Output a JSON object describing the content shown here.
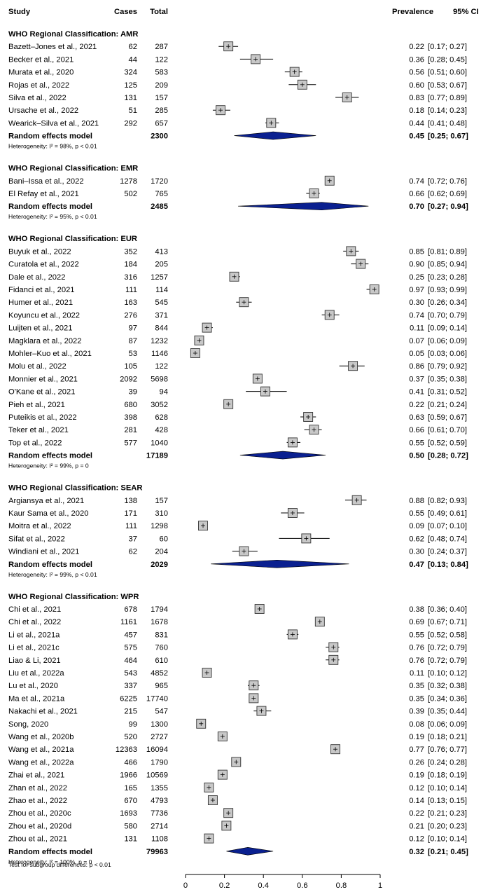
{
  "chart_data": {
    "type": "forest",
    "headers": {
      "study": "Study",
      "cases": "Cases",
      "total": "Total",
      "prevalence": "Prevalence",
      "ci": "95% CI"
    },
    "xlim": [
      0,
      1
    ],
    "x_ticks": [
      "0",
      "0.2",
      "0.4",
      "0.6",
      "0.8",
      "1"
    ],
    "groups": [
      {
        "title": "WHO Regional Classification: AMR",
        "studies": [
          {
            "study": "Bazett–Jones et al., 2021",
            "cases": "62",
            "total": "287",
            "est": 0.22,
            "lo": 0.17,
            "hi": 0.27,
            "prev": "0.22",
            "ci": "[0.17; 0.27]"
          },
          {
            "study": "Becker et al., 2021",
            "cases": "44",
            "total": "122",
            "est": 0.36,
            "lo": 0.28,
            "hi": 0.45,
            "prev": "0.36",
            "ci": "[0.28; 0.45]"
          },
          {
            "study": "Murata et al., 2020",
            "cases": "324",
            "total": "583",
            "est": 0.56,
            "lo": 0.51,
            "hi": 0.6,
            "prev": "0.56",
            "ci": "[0.51; 0.60]"
          },
          {
            "study": "Rojas et al., 2022",
            "cases": "125",
            "total": "209",
            "est": 0.6,
            "lo": 0.53,
            "hi": 0.67,
            "prev": "0.60",
            "ci": "[0.53; 0.67]"
          },
          {
            "study": "Silva et al., 2022",
            "cases": "131",
            "total": "157",
            "est": 0.83,
            "lo": 0.77,
            "hi": 0.89,
            "prev": "0.83",
            "ci": "[0.77; 0.89]"
          },
          {
            "study": "Ursache et al., 2022",
            "cases": "51",
            "total": "285",
            "est": 0.18,
            "lo": 0.14,
            "hi": 0.23,
            "prev": "0.18",
            "ci": "[0.14; 0.23]"
          },
          {
            "study": "Wearick–Silva et al., 2021",
            "cases": "292",
            "total": "657",
            "est": 0.44,
            "lo": 0.41,
            "hi": 0.48,
            "prev": "0.44",
            "ci": "[0.41; 0.48]"
          }
        ],
        "model": {
          "label": "Random effects model",
          "total": "2300",
          "est": 0.45,
          "lo": 0.25,
          "hi": 0.67,
          "prev": "0.45",
          "ci": "[0.25; 0.67]"
        },
        "heterogeneity": "Heterogeneity: I² = 98%, p < 0.01"
      },
      {
        "title": "WHO Regional Classification: EMR",
        "studies": [
          {
            "study": "Bani–Issa et al., 2022",
            "cases": "1278",
            "total": "1720",
            "est": 0.74,
            "lo": 0.72,
            "hi": 0.76,
            "prev": "0.74",
            "ci": "[0.72; 0.76]"
          },
          {
            "study": "El Refay et al., 2021",
            "cases": "502",
            "total": "765",
            "est": 0.66,
            "lo": 0.62,
            "hi": 0.69,
            "prev": "0.66",
            "ci": "[0.62; 0.69]"
          }
        ],
        "model": {
          "label": "Random effects model",
          "total": "2485",
          "est": 0.7,
          "lo": 0.27,
          "hi": 0.94,
          "prev": "0.70",
          "ci": "[0.27; 0.94]"
        },
        "heterogeneity": "Heterogeneity: I² = 95%, p < 0.01"
      },
      {
        "title": "WHO Regional Classification: EUR",
        "studies": [
          {
            "study": "Buyuk et al., 2022",
            "cases": "352",
            "total": "413",
            "est": 0.85,
            "lo": 0.81,
            "hi": 0.89,
            "prev": "0.85",
            "ci": "[0.81; 0.89]"
          },
          {
            "study": "Curatola et al., 2022",
            "cases": "184",
            "total": "205",
            "est": 0.9,
            "lo": 0.85,
            "hi": 0.94,
            "prev": "0.90",
            "ci": "[0.85; 0.94]"
          },
          {
            "study": "Dale et al., 2022",
            "cases": "316",
            "total": "1257",
            "est": 0.25,
            "lo": 0.23,
            "hi": 0.28,
            "prev": "0.25",
            "ci": "[0.23; 0.28]"
          },
          {
            "study": "Fidanci et al., 2021",
            "cases": "111",
            "total": "114",
            "est": 0.97,
            "lo": 0.93,
            "hi": 0.99,
            "prev": "0.97",
            "ci": "[0.93; 0.99]"
          },
          {
            "study": "Humer et al., 2021",
            "cases": "163",
            "total": "545",
            "est": 0.3,
            "lo": 0.26,
            "hi": 0.34,
            "prev": "0.30",
            "ci": "[0.26; 0.34]"
          },
          {
            "study": "Koyuncu et al., 2022",
            "cases": "276",
            "total": "371",
            "est": 0.74,
            "lo": 0.7,
            "hi": 0.79,
            "prev": "0.74",
            "ci": "[0.70; 0.79]"
          },
          {
            "study": "Luijten et al., 2021",
            "cases": "97",
            "total": "844",
            "est": 0.11,
            "lo": 0.09,
            "hi": 0.14,
            "prev": "0.11",
            "ci": "[0.09; 0.14]"
          },
          {
            "study": "Magklara et al., 2022",
            "cases": "87",
            "total": "1232",
            "est": 0.07,
            "lo": 0.06,
            "hi": 0.09,
            "prev": "0.07",
            "ci": "[0.06; 0.09]"
          },
          {
            "study": "Mohler–Kuo et al., 2021",
            "cases": "53",
            "total": "1146",
            "est": 0.05,
            "lo": 0.03,
            "hi": 0.06,
            "prev": "0.05",
            "ci": "[0.03; 0.06]"
          },
          {
            "study": "Molu et al., 2022",
            "cases": "105",
            "total": "122",
            "est": 0.86,
            "lo": 0.79,
            "hi": 0.92,
            "prev": "0.86",
            "ci": "[0.79; 0.92]"
          },
          {
            "study": "Monnier et al., 2021",
            "cases": "2092",
            "total": "5698",
            "est": 0.37,
            "lo": 0.35,
            "hi": 0.38,
            "prev": "0.37",
            "ci": "[0.35; 0.38]"
          },
          {
            "study": "O'Kane et al., 2021",
            "cases": "39",
            "total": "94",
            "est": 0.41,
            "lo": 0.31,
            "hi": 0.52,
            "prev": "0.41",
            "ci": "[0.31; 0.52]"
          },
          {
            "study": "Pieh et al., 2021",
            "cases": "680",
            "total": "3052",
            "est": 0.22,
            "lo": 0.21,
            "hi": 0.24,
            "prev": "0.22",
            "ci": "[0.21; 0.24]"
          },
          {
            "study": "Puteikis et al., 2022",
            "cases": "398",
            "total": "628",
            "est": 0.63,
            "lo": 0.59,
            "hi": 0.67,
            "prev": "0.63",
            "ci": "[0.59; 0.67]"
          },
          {
            "study": "Teker et al., 2021",
            "cases": "281",
            "total": "428",
            "est": 0.66,
            "lo": 0.61,
            "hi": 0.7,
            "prev": "0.66",
            "ci": "[0.61; 0.70]"
          },
          {
            "study": "Top et al., 2022",
            "cases": "577",
            "total": "1040",
            "est": 0.55,
            "lo": 0.52,
            "hi": 0.59,
            "prev": "0.55",
            "ci": "[0.52; 0.59]"
          }
        ],
        "model": {
          "label": "Random effects model",
          "total": "17189",
          "est": 0.5,
          "lo": 0.28,
          "hi": 0.72,
          "prev": "0.50",
          "ci": "[0.28; 0.72]"
        },
        "heterogeneity": "Heterogeneity: I² = 99%, p = 0"
      },
      {
        "title": "WHO Regional Classification: SEAR",
        "studies": [
          {
            "study": "Argiansya et al., 2021",
            "cases": "138",
            "total": "157",
            "est": 0.88,
            "lo": 0.82,
            "hi": 0.93,
            "prev": "0.88",
            "ci": "[0.82; 0.93]"
          },
          {
            "study": "Kaur Sama et al., 2020",
            "cases": "171",
            "total": "310",
            "est": 0.55,
            "lo": 0.49,
            "hi": 0.61,
            "prev": "0.55",
            "ci": "[0.49; 0.61]"
          },
          {
            "study": "Moitra et al., 2022",
            "cases": "111",
            "total": "1298",
            "est": 0.09,
            "lo": 0.07,
            "hi": 0.1,
            "prev": "0.09",
            "ci": "[0.07; 0.10]"
          },
          {
            "study": "Sifat et al., 2022",
            "cases": "37",
            "total": "60",
            "est": 0.62,
            "lo": 0.48,
            "hi": 0.74,
            "prev": "0.62",
            "ci": "[0.48; 0.74]"
          },
          {
            "study": "Windiani et al., 2021",
            "cases": "62",
            "total": "204",
            "est": 0.3,
            "lo": 0.24,
            "hi": 0.37,
            "prev": "0.30",
            "ci": "[0.24; 0.37]"
          }
        ],
        "model": {
          "label": "Random effects model",
          "total": "2029",
          "est": 0.47,
          "lo": 0.13,
          "hi": 0.84,
          "prev": "0.47",
          "ci": "[0.13; 0.84]"
        },
        "heterogeneity": "Heterogeneity: I² = 99%, p < 0.01"
      },
      {
        "title": "WHO Regional Classification: WPR",
        "studies": [
          {
            "study": "Chi et al., 2021",
            "cases": "678",
            "total": "1794",
            "est": 0.38,
            "lo": 0.36,
            "hi": 0.4,
            "prev": "0.38",
            "ci": "[0.36; 0.40]"
          },
          {
            "study": "Chi et al., 2022",
            "cases": "1161",
            "total": "1678",
            "est": 0.69,
            "lo": 0.67,
            "hi": 0.71,
            "prev": "0.69",
            "ci": "[0.67; 0.71]"
          },
          {
            "study": "Li et al., 2021a",
            "cases": "457",
            "total": "831",
            "est": 0.55,
            "lo": 0.52,
            "hi": 0.58,
            "prev": "0.55",
            "ci": "[0.52; 0.58]"
          },
          {
            "study": "Li et al., 2021c",
            "cases": "575",
            "total": "760",
            "est": 0.76,
            "lo": 0.72,
            "hi": 0.79,
            "prev": "0.76",
            "ci": "[0.72; 0.79]"
          },
          {
            "study": "Liao & Li, 2021",
            "cases": "464",
            "total": "610",
            "est": 0.76,
            "lo": 0.72,
            "hi": 0.79,
            "prev": "0.76",
            "ci": "[0.72; 0.79]"
          },
          {
            "study": "Liu et al., 2022a",
            "cases": "543",
            "total": "4852",
            "est": 0.11,
            "lo": 0.1,
            "hi": 0.12,
            "prev": "0.11",
            "ci": "[0.10; 0.12]"
          },
          {
            "study": "Lu et al., 2020",
            "cases": "337",
            "total": "965",
            "est": 0.35,
            "lo": 0.32,
            "hi": 0.38,
            "prev": "0.35",
            "ci": "[0.32; 0.38]"
          },
          {
            "study": "Ma et al., 2021a",
            "cases": "6225",
            "total": "17740",
            "est": 0.35,
            "lo": 0.34,
            "hi": 0.36,
            "prev": "0.35",
            "ci": "[0.34; 0.36]"
          },
          {
            "study": "Nakachi et al., 2021",
            "cases": "215",
            "total": "547",
            "est": 0.39,
            "lo": 0.35,
            "hi": 0.44,
            "prev": "0.39",
            "ci": "[0.35; 0.44]"
          },
          {
            "study": "Song, 2020",
            "cases": "99",
            "total": "1300",
            "est": 0.08,
            "lo": 0.06,
            "hi": 0.09,
            "prev": "0.08",
            "ci": "[0.06; 0.09]"
          },
          {
            "study": "Wang et al., 2020b",
            "cases": "520",
            "total": "2727",
            "est": 0.19,
            "lo": 0.18,
            "hi": 0.21,
            "prev": "0.19",
            "ci": "[0.18; 0.21]"
          },
          {
            "study": "Wang et al., 2021a",
            "cases": "12363",
            "total": "16094",
            "est": 0.77,
            "lo": 0.76,
            "hi": 0.77,
            "prev": "0.77",
            "ci": "[0.76; 0.77]"
          },
          {
            "study": "Wang et al., 2022a",
            "cases": "466",
            "total": "1790",
            "est": 0.26,
            "lo": 0.24,
            "hi": 0.28,
            "prev": "0.26",
            "ci": "[0.24; 0.28]"
          },
          {
            "study": "Zhai et al., 2021",
            "cases": "1966",
            "total": "10569",
            "est": 0.19,
            "lo": 0.18,
            "hi": 0.19,
            "prev": "0.19",
            "ci": "[0.18; 0.19]"
          },
          {
            "study": "Zhan et al., 2022",
            "cases": "165",
            "total": "1355",
            "est": 0.12,
            "lo": 0.1,
            "hi": 0.14,
            "prev": "0.12",
            "ci": "[0.10; 0.14]"
          },
          {
            "study": "Zhao et al., 2022",
            "cases": "670",
            "total": "4793",
            "est": 0.14,
            "lo": 0.13,
            "hi": 0.15,
            "prev": "0.14",
            "ci": "[0.13; 0.15]"
          },
          {
            "study": "Zhou et al., 2020c",
            "cases": "1693",
            "total": "7736",
            "est": 0.22,
            "lo": 0.21,
            "hi": 0.23,
            "prev": "0.22",
            "ci": "[0.21; 0.23]"
          },
          {
            "study": "Zhou et al., 2020d",
            "cases": "580",
            "total": "2714",
            "est": 0.21,
            "lo": 0.2,
            "hi": 0.23,
            "prev": "0.21",
            "ci": "[0.20; 0.23]"
          },
          {
            "study": "Zhou et al., 2021",
            "cases": "131",
            "total": "1108",
            "est": 0.12,
            "lo": 0.1,
            "hi": 0.14,
            "prev": "0.12",
            "ci": "[0.10; 0.14]"
          }
        ],
        "model": {
          "label": "Random effects model",
          "total": "79963",
          "est": 0.32,
          "lo": 0.21,
          "hi": 0.45,
          "prev": "0.32",
          "ci": "[0.21; 0.45]"
        },
        "heterogeneity": "Heterogeneity: I² = 100%, p = 0"
      }
    ],
    "subgroup_test": "Test for subgroup differences:  p < 0.01",
    "colors": {
      "box": "#c8c8c8",
      "diamond": "#0a2090",
      "line": "#000000"
    }
  }
}
